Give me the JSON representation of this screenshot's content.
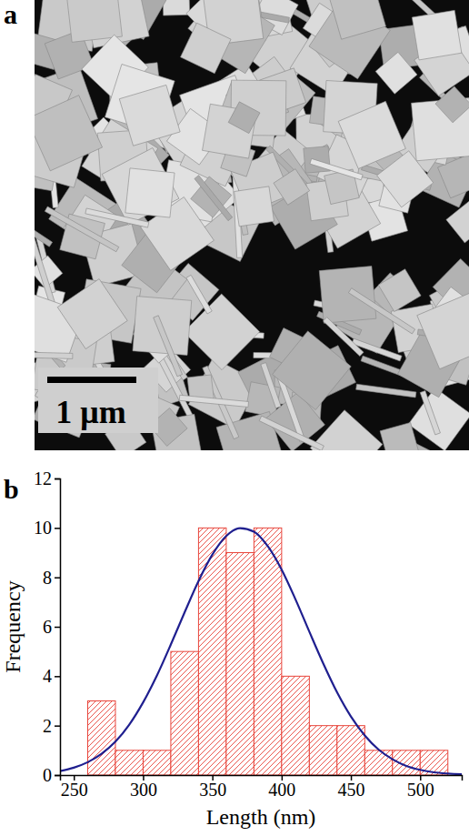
{
  "panel_labels": [
    "a",
    "b"
  ],
  "image": {
    "scale_bar_label": "1 μm"
  },
  "chart_data": {
    "type": "histogram",
    "xlabel": "Length (nm)",
    "ylabel": "Frequency",
    "bins": [
      260,
      280,
      300,
      320,
      340,
      360,
      380,
      400,
      420,
      440,
      460,
      480,
      500,
      520
    ],
    "values": [
      3,
      1,
      1,
      5,
      10,
      9,
      10,
      4,
      2,
      2,
      1,
      1,
      1
    ],
    "color": "#e8443a",
    "xlim": [
      240,
      530
    ],
    "ylim": [
      0,
      12
    ],
    "xticks": [
      250,
      300,
      350,
      400,
      450,
      500
    ],
    "yticks": [
      0,
      2,
      4,
      6,
      8,
      10,
      12
    ],
    "series": [
      {
        "type": "line",
        "color": "#1f1f8f",
        "x": [
          240,
          250,
          260,
          270,
          280,
          290,
          300,
          310,
          320,
          330,
          340,
          350,
          360,
          370,
          380,
          390,
          400,
          410,
          420,
          430,
          440,
          450,
          460,
          470,
          480,
          490,
          500,
          510,
          520,
          530
        ],
        "values": [
          0.16,
          0.3,
          0.52,
          0.86,
          1.35,
          2.04,
          2.94,
          4.03,
          5.28,
          6.59,
          7.85,
          8.92,
          9.67,
          9.99,
          9.85,
          9.26,
          8.31,
          7.11,
          5.8,
          4.52,
          3.35,
          2.37,
          1.6,
          1.03,
          0.64,
          0.37,
          0.21,
          0.11,
          0.06,
          0.03
        ]
      }
    ]
  }
}
